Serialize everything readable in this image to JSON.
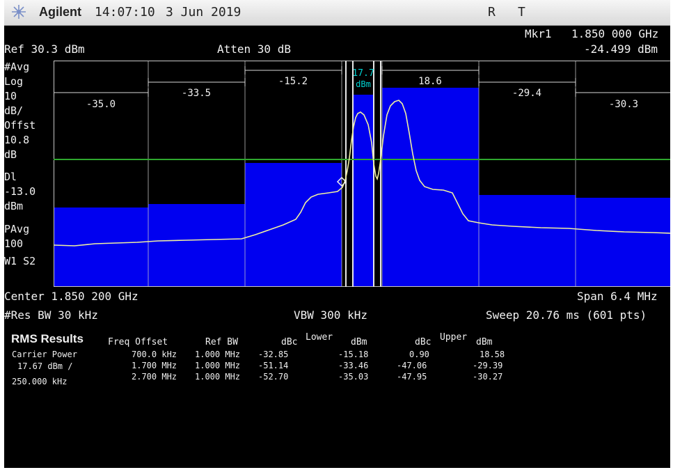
{
  "titlebar": {
    "brand": "Agilent",
    "time": "14:07:10",
    "date": "3 Jun 2019",
    "status_r": "R",
    "status_t": "T"
  },
  "marker": {
    "label": "Mkr1",
    "freq": "1.850 000 GHz",
    "level": "-24.499 dBm"
  },
  "header": {
    "ref": "Ref 30.3 dBm",
    "atten": "Atten 30 dB"
  },
  "left_annotations": [
    "#Avg",
    "Log",
    "10",
    "dB/",
    "Offst",
    "10.8",
    "dB",
    "Dl",
    "-13.0",
    "dBm",
    "PAvg",
    "100",
    "W1  S2"
  ],
  "channel_labels": {
    "outer_left": "-35.0",
    "mid_left": "-33.5",
    "inner_left": "-15.2",
    "carrier_value": "17.7",
    "carrier_unit": "dBm",
    "inner_right": "18.6",
    "mid_right": "-29.4",
    "outer_right": "-30.3"
  },
  "footer": {
    "center": "Center 1.850 200 GHz",
    "span": "Span 6.4 MHz",
    "res_bw": "#Res BW 30 kHz",
    "vbw": "VBW 300 kHz",
    "sweep": "Sweep 20.76 ms (601 pts)"
  },
  "rms": {
    "title": "RMS Results",
    "col_freq": "Freq Offset",
    "col_refbw": "Ref BW",
    "col_dbc": "dBc",
    "col_lower": "Lower",
    "col_dbm": "dBm",
    "col_dbc2": "dBc",
    "col_upper": "Upper",
    "col_dbm2": "dBm",
    "carrier_label": "Carrier Power",
    "carrier_value": "17.67 dBm /",
    "carrier_bw": "250.000 kHz",
    "rows": [
      {
        "freq": "700.0 kHz",
        "refbw": "1.000 MHz",
        "lower_dbc": "-32.85",
        "lower_dbm": "-15.18",
        "upper_dbc": "0.90",
        "upper_dbm": "18.58"
      },
      {
        "freq": "1.700 MHz",
        "refbw": "1.000 MHz",
        "lower_dbc": "-51.14",
        "lower_dbm": "-33.46",
        "upper_dbc": "-47.06",
        "upper_dbm": "-29.39"
      },
      {
        "freq": "2.700 MHz",
        "refbw": "1.000 MHz",
        "lower_dbc": "-52.70",
        "lower_dbm": "-35.03",
        "upper_dbc": "-47.95",
        "upper_dbm": "-30.27"
      }
    ]
  },
  "colors": {
    "bars": "#0000f0",
    "trace": "#f0f0a0",
    "display_line": "#2ea82e",
    "graticule": "#c8c8c8",
    "carrier_label": "#00d0d0"
  }
}
